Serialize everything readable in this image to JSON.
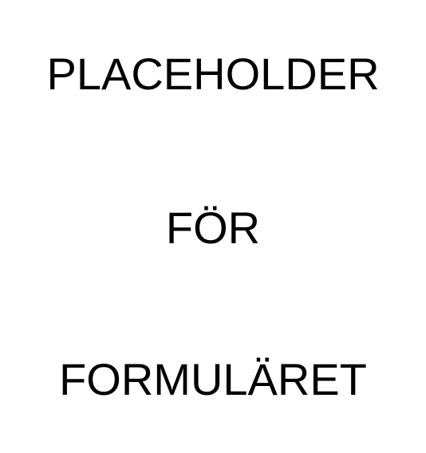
{
  "placeholder": {
    "lines": [
      "PLACEHOLDER",
      "FÖR",
      "FORMULÄRET"
    ]
  },
  "colors": {
    "background": "#ffffff",
    "text": "#000000"
  }
}
